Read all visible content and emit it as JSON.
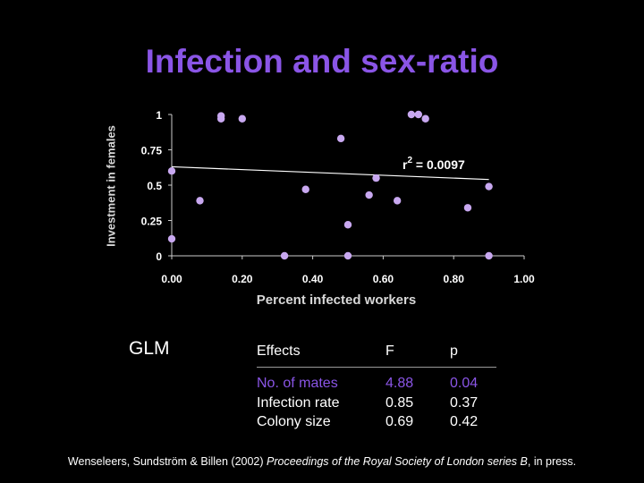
{
  "slide": {
    "title": "Infection and sex-ratio",
    "glm_label": "GLM",
    "citation": {
      "authors": "Wenseleers, Sundström & Billen (2002) ",
      "journal": "Proceedings of the Royal Society of London series B",
      "suffix": ", in press."
    },
    "colors": {
      "accent": "#8a55e6",
      "point": "#c8a8f0",
      "axis": "#cccccc"
    }
  },
  "chart_data": {
    "type": "scatter",
    "title": "",
    "xlabel": "Percent infected workers",
    "ylabel": "Investment in females",
    "xlim": [
      0,
      1
    ],
    "ylim": [
      0,
      1
    ],
    "x_ticks": [
      "0.00",
      "0.20",
      "0.40",
      "0.60",
      "0.80",
      "1.00"
    ],
    "y_ticks": [
      "0",
      "0.25",
      "0.5",
      "0.75",
      "1"
    ],
    "annotation": {
      "r": "r",
      "sup": "2",
      "rest": " = 0.0097"
    },
    "trendline": {
      "start": [
        0,
        0.63
      ],
      "end": [
        0.9,
        0.54
      ]
    },
    "points": [
      {
        "x": 0.0,
        "y": 0.6
      },
      {
        "x": 0.0,
        "y": 0.12
      },
      {
        "x": 0.08,
        "y": 0.39
      },
      {
        "x": 0.14,
        "y": 0.99
      },
      {
        "x": 0.14,
        "y": 0.97
      },
      {
        "x": 0.2,
        "y": 0.97
      },
      {
        "x": 0.32,
        "y": 0.0
      },
      {
        "x": 0.38,
        "y": 0.47
      },
      {
        "x": 0.48,
        "y": 0.83
      },
      {
        "x": 0.5,
        "y": 0.22
      },
      {
        "x": 0.5,
        "y": 0.0
      },
      {
        "x": 0.56,
        "y": 0.43
      },
      {
        "x": 0.58,
        "y": 0.55
      },
      {
        "x": 0.64,
        "y": 0.39
      },
      {
        "x": 0.68,
        "y": 1.0
      },
      {
        "x": 0.7,
        "y": 1.0
      },
      {
        "x": 0.72,
        "y": 0.97
      },
      {
        "x": 0.84,
        "y": 0.34
      },
      {
        "x": 0.9,
        "y": 0.49
      },
      {
        "x": 0.9,
        "y": 0.0
      }
    ]
  },
  "glm_table": {
    "headers": [
      "Effects",
      "F",
      "p"
    ],
    "effects": [
      "No. of mates",
      "Infection rate",
      "Colony size"
    ],
    "F": [
      "4.88",
      "0.85",
      "0.69"
    ],
    "p": [
      "0.04",
      "0.37",
      "0.42"
    ]
  }
}
